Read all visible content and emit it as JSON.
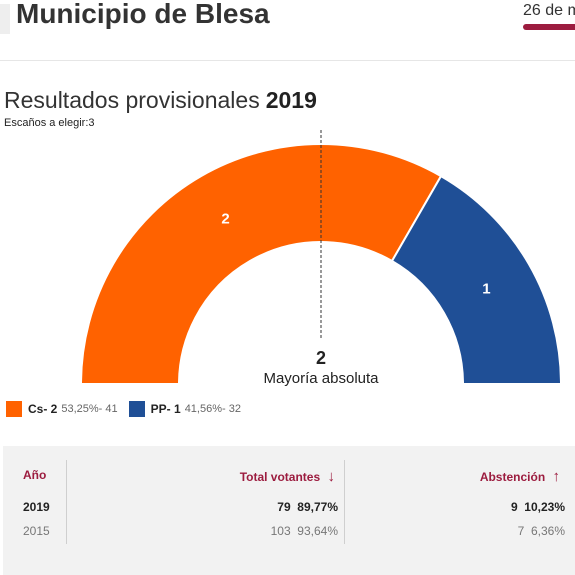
{
  "header": {
    "title": "Municipio de Blesa",
    "date_tab": "26 de m",
    "accent_color": "#9c1c3f"
  },
  "results": {
    "title": "Resultados provisionales",
    "year": "2019",
    "seats_label": "Escaños a elegir:3"
  },
  "chart_data": {
    "type": "pie",
    "subtype": "hemicycle",
    "total_seats": 3,
    "series": [
      {
        "name": "Cs",
        "seats": 2,
        "percent": 53.25,
        "votes": 41,
        "color": "#ff6200"
      },
      {
        "name": "PP",
        "seats": 1,
        "percent": 41.56,
        "votes": 32,
        "color": "#1f4f96"
      }
    ],
    "majority": {
      "seats": 2,
      "label": "Mayoría absoluta"
    }
  },
  "legend": [
    {
      "party": "Cs- 2",
      "detail": "53,25%- 41",
      "color": "#ff6200"
    },
    {
      "party": "PP- 1",
      "detail": "41,56%- 32",
      "color": "#1f4f96"
    }
  ],
  "table": {
    "headers": {
      "year": "Año",
      "total_voters": "Total votantes",
      "total_voters_arrow": "↓",
      "abstention": "Abstención",
      "abstention_arrow": "↑"
    },
    "rows": [
      {
        "year": "2019",
        "voters": "79",
        "voters_pct": "89,77%",
        "abst": "9",
        "abst_pct": "10,23%"
      },
      {
        "year": "2015",
        "voters": "103",
        "voters_pct": "93,64%",
        "abst": "7",
        "abst_pct": "6,36%"
      }
    ]
  }
}
